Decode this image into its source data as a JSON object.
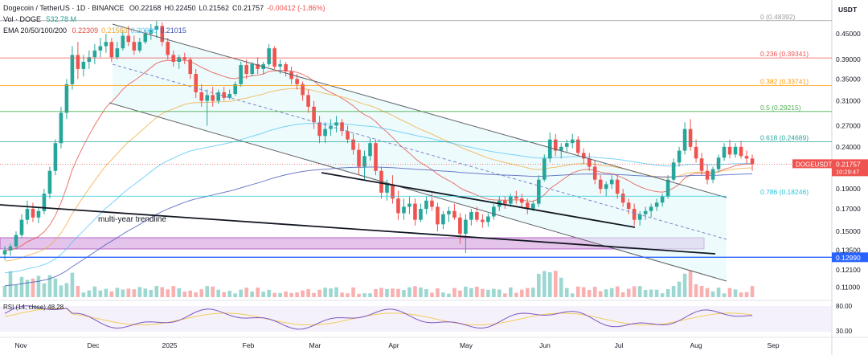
{
  "header": {
    "symbol": "Dogecoin / TetherUS · 1D · BINANCE",
    "ohlc": [
      {
        "k": "O",
        "v": "0.22168"
      },
      {
        "k": "H",
        "v": "0.22450"
      },
      {
        "k": "L",
        "v": "0.21562"
      },
      {
        "k": "C",
        "v": "0.21757"
      },
      {
        "k": "",
        "v": "-0.00412 (-1.86%)"
      }
    ],
    "vol_label": "Vol · DOGE",
    "vol_value": "532.78 M",
    "ema_label": "EMA 20/50/100/200",
    "ema_values": [
      {
        "v": "0.22309",
        "color": "#e4473c"
      },
      {
        "v": "0.21563",
        "color": "#f2a93b"
      },
      {
        "v": "0.20900",
        "color": "#4fc3f7"
      },
      {
        "v": "0.21015",
        "color": "#3f51b5"
      }
    ]
  },
  "currency": "USDT",
  "price_tag": {
    "label": "DOGEUSDT",
    "value": "0.21757",
    "time": "10:29:47"
  },
  "chart_data": {
    "type": "candlestick",
    "symbol": "DOGEUSDT",
    "y_axis": {
      "ticks": [
        "0.45000",
        "0.39000",
        "0.35000",
        "0.31000",
        "0.27000",
        "0.24000",
        "0.19000",
        "0.17000",
        "0.15000",
        "0.13500",
        "0.12100",
        "0.11000"
      ],
      "scale": "log",
      "range": [
        0.105,
        0.51
      ]
    },
    "x_axis": {
      "ticks": [
        "Nov",
        "Dec",
        "2025",
        "Feb",
        "Mar",
        "Apr",
        "May",
        "Jun",
        "Jul",
        "Aug",
        "Sep"
      ]
    },
    "fib_levels": [
      {
        "label": "0 (0.48392)",
        "value": 0.48392,
        "color": "#9e9e9e"
      },
      {
        "label": "0.236 (0.39341)",
        "value": 0.39341,
        "color": "#ef5350"
      },
      {
        "label": "0.382 (0.33741)",
        "value": 0.33741,
        "color": "#ff9800"
      },
      {
        "label": "0.5 (0.29215)",
        "value": 0.29215,
        "color": "#4caf50"
      },
      {
        "label": "0.618 (0.24689)",
        "value": 0.24689,
        "color": "#26a69a"
      },
      {
        "label": "0.786 (0.18246)",
        "value": 0.18246,
        "color": "#26c6da"
      }
    ],
    "support_level": {
      "value": 0.1299,
      "label": "0.12990",
      "color": "#2962ff"
    },
    "annotation": "multi-year trendline",
    "rsi_label": "RSI (14, close) 48.28",
    "rsi_ticks": [
      "80.00",
      "30.00"
    ],
    "candles": [
      [
        0.132,
        0.138,
        0.128,
        0.135
      ],
      [
        0.135,
        0.14,
        0.131,
        0.138
      ],
      [
        0.138,
        0.15,
        0.136,
        0.147
      ],
      [
        0.147,
        0.165,
        0.145,
        0.16
      ],
      [
        0.16,
        0.178,
        0.156,
        0.17
      ],
      [
        0.17,
        0.176,
        0.158,
        0.162
      ],
      [
        0.162,
        0.172,
        0.157,
        0.168
      ],
      [
        0.168,
        0.19,
        0.165,
        0.185
      ],
      [
        0.185,
        0.215,
        0.18,
        0.21
      ],
      [
        0.21,
        0.25,
        0.205,
        0.245
      ],
      [
        0.245,
        0.3,
        0.238,
        0.29
      ],
      [
        0.29,
        0.35,
        0.28,
        0.34
      ],
      [
        0.34,
        0.42,
        0.33,
        0.4
      ],
      [
        0.4,
        0.43,
        0.35,
        0.37
      ],
      [
        0.37,
        0.4,
        0.355,
        0.385
      ],
      [
        0.385,
        0.41,
        0.37,
        0.395
      ],
      [
        0.395,
        0.425,
        0.38,
        0.41
      ],
      [
        0.41,
        0.44,
        0.395,
        0.42
      ],
      [
        0.42,
        0.45,
        0.405,
        0.43
      ],
      [
        0.43,
        0.44,
        0.385,
        0.395
      ],
      [
        0.395,
        0.43,
        0.39,
        0.415
      ],
      [
        0.415,
        0.46,
        0.41,
        0.445
      ],
      [
        0.445,
        0.47,
        0.42,
        0.43
      ],
      [
        0.43,
        0.445,
        0.4,
        0.41
      ],
      [
        0.41,
        0.44,
        0.405,
        0.43
      ],
      [
        0.43,
        0.46,
        0.425,
        0.45
      ],
      [
        0.45,
        0.475,
        0.435,
        0.46
      ],
      [
        0.46,
        0.484,
        0.44,
        0.47
      ],
      [
        0.47,
        0.48,
        0.42,
        0.43
      ],
      [
        0.43,
        0.44,
        0.39,
        0.4
      ],
      [
        0.4,
        0.41,
        0.375,
        0.385
      ],
      [
        0.385,
        0.4,
        0.37,
        0.395
      ],
      [
        0.395,
        0.405,
        0.38,
        0.39
      ],
      [
        0.39,
        0.395,
        0.35,
        0.36
      ],
      [
        0.36,
        0.37,
        0.315,
        0.325
      ],
      [
        0.325,
        0.34,
        0.3,
        0.31
      ],
      [
        0.31,
        0.33,
        0.27,
        0.32
      ],
      [
        0.32,
        0.335,
        0.3,
        0.31
      ],
      [
        0.31,
        0.33,
        0.305,
        0.325
      ],
      [
        0.325,
        0.335,
        0.31,
        0.315
      ],
      [
        0.315,
        0.33,
        0.312,
        0.322
      ],
      [
        0.322,
        0.345,
        0.318,
        0.34
      ],
      [
        0.34,
        0.385,
        0.335,
        0.378
      ],
      [
        0.378,
        0.39,
        0.35,
        0.36
      ],
      [
        0.36,
        0.385,
        0.355,
        0.38
      ],
      [
        0.38,
        0.395,
        0.36,
        0.37
      ],
      [
        0.37,
        0.385,
        0.36,
        0.38
      ],
      [
        0.38,
        0.425,
        0.375,
        0.415
      ],
      [
        0.415,
        0.42,
        0.37,
        0.375
      ],
      [
        0.375,
        0.39,
        0.36,
        0.38
      ],
      [
        0.38,
        0.385,
        0.355,
        0.365
      ],
      [
        0.365,
        0.375,
        0.34,
        0.35
      ],
      [
        0.35,
        0.36,
        0.33,
        0.34
      ],
      [
        0.34,
        0.345,
        0.31,
        0.32
      ],
      [
        0.32,
        0.33,
        0.29,
        0.3
      ],
      [
        0.3,
        0.31,
        0.265,
        0.275
      ],
      [
        0.275,
        0.285,
        0.245,
        0.255
      ],
      [
        0.255,
        0.275,
        0.245,
        0.265
      ],
      [
        0.265,
        0.28,
        0.255,
        0.27
      ],
      [
        0.27,
        0.285,
        0.26,
        0.275
      ],
      [
        0.275,
        0.28,
        0.255,
        0.262
      ],
      [
        0.262,
        0.27,
        0.245,
        0.25
      ],
      [
        0.25,
        0.258,
        0.23,
        0.236
      ],
      [
        0.236,
        0.245,
        0.205,
        0.215
      ],
      [
        0.215,
        0.235,
        0.2,
        0.228
      ],
      [
        0.228,
        0.252,
        0.222,
        0.245
      ],
      [
        0.245,
        0.25,
        0.205,
        0.21
      ],
      [
        0.21,
        0.215,
        0.18,
        0.186
      ],
      [
        0.186,
        0.2,
        0.178,
        0.195
      ],
      [
        0.195,
        0.205,
        0.175,
        0.18
      ],
      [
        0.18,
        0.188,
        0.16,
        0.166
      ],
      [
        0.166,
        0.18,
        0.16,
        0.172
      ],
      [
        0.172,
        0.182,
        0.165,
        0.175
      ],
      [
        0.175,
        0.18,
        0.155,
        0.16
      ],
      [
        0.16,
        0.175,
        0.158,
        0.17
      ],
      [
        0.17,
        0.182,
        0.165,
        0.178
      ],
      [
        0.178,
        0.185,
        0.168,
        0.172
      ],
      [
        0.172,
        0.176,
        0.15,
        0.156
      ],
      [
        0.156,
        0.168,
        0.152,
        0.165
      ],
      [
        0.165,
        0.172,
        0.158,
        0.168
      ],
      [
        0.168,
        0.175,
        0.16,
        0.162
      ],
      [
        0.162,
        0.166,
        0.14,
        0.148
      ],
      [
        0.148,
        0.165,
        0.133,
        0.16
      ],
      [
        0.16,
        0.17,
        0.155,
        0.167
      ],
      [
        0.167,
        0.172,
        0.158,
        0.16
      ],
      [
        0.16,
        0.165,
        0.153,
        0.158
      ],
      [
        0.158,
        0.166,
        0.154,
        0.163
      ],
      [
        0.163,
        0.175,
        0.16,
        0.172
      ],
      [
        0.172,
        0.182,
        0.168,
        0.178
      ],
      [
        0.178,
        0.182,
        0.17,
        0.175
      ],
      [
        0.175,
        0.185,
        0.172,
        0.182
      ],
      [
        0.182,
        0.188,
        0.175,
        0.18
      ],
      [
        0.18,
        0.185,
        0.172,
        0.176
      ],
      [
        0.176,
        0.18,
        0.165,
        0.17
      ],
      [
        0.17,
        0.178,
        0.168,
        0.175
      ],
      [
        0.175,
        0.205,
        0.172,
        0.2
      ],
      [
        0.2,
        0.23,
        0.198,
        0.225
      ],
      [
        0.225,
        0.26,
        0.22,
        0.25
      ],
      [
        0.25,
        0.258,
        0.228,
        0.235
      ],
      [
        0.235,
        0.245,
        0.225,
        0.24
      ],
      [
        0.24,
        0.25,
        0.232,
        0.245
      ],
      [
        0.245,
        0.258,
        0.238,
        0.25
      ],
      [
        0.25,
        0.255,
        0.228,
        0.232
      ],
      [
        0.232,
        0.238,
        0.218,
        0.225
      ],
      [
        0.225,
        0.232,
        0.21,
        0.215
      ],
      [
        0.215,
        0.222,
        0.195,
        0.2
      ],
      [
        0.2,
        0.205,
        0.185,
        0.19
      ],
      [
        0.19,
        0.198,
        0.182,
        0.195
      ],
      [
        0.195,
        0.205,
        0.19,
        0.2
      ],
      [
        0.2,
        0.205,
        0.18,
        0.185
      ],
      [
        0.185,
        0.19,
        0.172,
        0.176
      ],
      [
        0.176,
        0.18,
        0.165,
        0.17
      ],
      [
        0.17,
        0.175,
        0.155,
        0.16
      ],
      [
        0.16,
        0.168,
        0.155,
        0.165
      ],
      [
        0.165,
        0.172,
        0.16,
        0.168
      ],
      [
        0.168,
        0.175,
        0.162,
        0.172
      ],
      [
        0.172,
        0.18,
        0.168,
        0.176
      ],
      [
        0.176,
        0.185,
        0.172,
        0.182
      ],
      [
        0.182,
        0.205,
        0.18,
        0.2
      ],
      [
        0.2,
        0.225,
        0.198,
        0.22
      ],
      [
        0.22,
        0.24,
        0.215,
        0.235
      ],
      [
        0.235,
        0.275,
        0.23,
        0.265
      ],
      [
        0.265,
        0.28,
        0.235,
        0.24
      ],
      [
        0.24,
        0.25,
        0.22,
        0.225
      ],
      [
        0.225,
        0.232,
        0.205,
        0.21
      ],
      [
        0.21,
        0.218,
        0.195,
        0.2
      ],
      [
        0.2,
        0.215,
        0.196,
        0.212
      ],
      [
        0.212,
        0.23,
        0.208,
        0.226
      ],
      [
        0.226,
        0.245,
        0.222,
        0.24
      ],
      [
        0.24,
        0.25,
        0.225,
        0.23
      ],
      [
        0.23,
        0.245,
        0.226,
        0.24
      ],
      [
        0.24,
        0.248,
        0.225,
        0.228
      ],
      [
        0.228,
        0.235,
        0.218,
        0.225
      ],
      [
        0.225,
        0.23,
        0.21,
        0.218
      ]
    ]
  }
}
